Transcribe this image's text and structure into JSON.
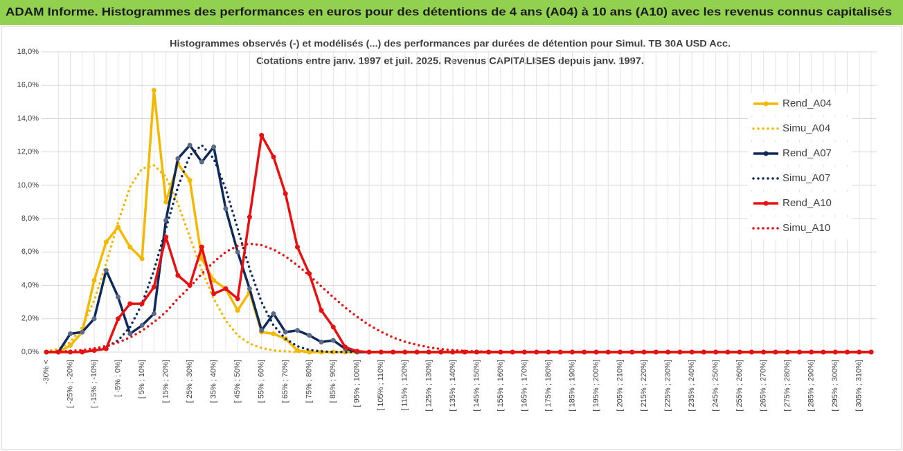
{
  "page_title": "ADAM Informe. Histogrammes des performances en euros pour des détentions de 4 ans (A04) à 10 ans (A10) avec les revenus connus capitalisés",
  "chart_data": {
    "type": "line",
    "title": "Histogrammes observés (-) et modélisés (...) des performances par durées de détention pour Simul. TB 30A USD Acc.",
    "subtitle": "Cotations entre janv. 1997 et juil. 2025. Revenus CAPITALISES depuis janv. 1997.",
    "categories": [
      "-30% <",
      null,
      "[ -25% ; -20%]",
      null,
      "[ -15% ; -10%]",
      null,
      "[ -5% ; 0%]",
      null,
      "[ 5% ; 10%]",
      null,
      "[ 15% ; 20%]",
      null,
      "[ 25% ; 30%]",
      null,
      "[ 35% ; 40%]",
      null,
      "[ 45% ; 50%]",
      null,
      "[ 55% ; 60%]",
      null,
      "[ 65% ; 70%]",
      null,
      "[ 75% ; 80%]",
      null,
      "[ 85% ; 90%]",
      null,
      "[ 95% ; 100%]",
      null,
      "[ 105% ; 110%]",
      null,
      "[ 115% ; 120%]",
      null,
      "[ 125% ; 130%]",
      null,
      "[ 135% ; 140%]",
      null,
      "[ 145% ; 150%]",
      null,
      "[ 155% ; 160%]",
      null,
      "[ 165% ; 170%]",
      null,
      "[ 175% ; 180%]",
      null,
      "[ 185% ; 190%]",
      null,
      "[ 195% ; 200%]",
      null,
      "[ 205% ; 210%]",
      null,
      "[ 215% ; 220%]",
      null,
      "[ 225% ; 230%]",
      null,
      "[ 235% ; 240%]",
      null,
      "[ 245% ; 250%]",
      null,
      "[ 255% ; 260%]",
      null,
      "[ 265% ; 270%]",
      null,
      "[ 275% ; 280%]",
      null,
      "[ 285% ; 290%]",
      null,
      "[ 295% ; 300%]",
      null,
      "[ 305% ; 310%]",
      null
    ],
    "series": [
      {
        "name": "Rend_A04",
        "color": "#f5b800",
        "line_style": "solid",
        "markers": true,
        "values": [
          0,
          0,
          0.4,
          1.2,
          4.3,
          6.6,
          7.5,
          6.3,
          5.6,
          15.7,
          9.0,
          11.3,
          10.3,
          5.6,
          4.3,
          3.8,
          2.5,
          3.6,
          1.2,
          1.1,
          0.8,
          0.1,
          0,
          0,
          0,
          0,
          0,
          0,
          0,
          0,
          0,
          0,
          0,
          0,
          0,
          0,
          0,
          0,
          0,
          0,
          0,
          0,
          0,
          0,
          0,
          0,
          0,
          0,
          0,
          0,
          0,
          0,
          0,
          0,
          0,
          0,
          0,
          0,
          0,
          0,
          0,
          0,
          0,
          0,
          0,
          0,
          0,
          0,
          0,
          0
        ]
      },
      {
        "name": "Simu_A04",
        "color": "#f5b800",
        "line_style": "dotted",
        "markers": false,
        "values": [
          0.05,
          0.2,
          0.6,
          1.5,
          3.1,
          5.3,
          7.8,
          9.9,
          11.0,
          11.2,
          10.5,
          8.9,
          6.9,
          4.9,
          3.2,
          1.9,
          1.0,
          0.5,
          0.25,
          0.1,
          0.04,
          0.01,
          0,
          0,
          0,
          0,
          0,
          0,
          0,
          0,
          0,
          0,
          0,
          0,
          0,
          0,
          0,
          0,
          0,
          0,
          0,
          0,
          0,
          0,
          0,
          0,
          0,
          0,
          0,
          0,
          0,
          0,
          0,
          0,
          0,
          0,
          0,
          0,
          0,
          0,
          0,
          0,
          0,
          0,
          0,
          0,
          0,
          0,
          0,
          0
        ]
      },
      {
        "name": "Rend_A07",
        "color": "#0e2a5a",
        "line_style": "solid",
        "markers": true,
        "values": [
          0,
          0,
          1.1,
          1.2,
          2.0,
          4.9,
          3.3,
          1.1,
          1.6,
          2.3,
          7.9,
          11.6,
          12.4,
          11.4,
          12.3,
          8.6,
          6.0,
          3.8,
          1.3,
          2.3,
          1.2,
          1.3,
          1.0,
          0.6,
          0.7,
          0.2,
          0,
          0,
          0,
          0,
          0,
          0,
          0,
          0,
          0,
          0,
          0,
          0,
          0,
          0,
          0,
          0,
          0,
          0,
          0,
          0,
          0,
          0,
          0,
          0,
          0,
          0,
          0,
          0,
          0,
          0,
          0,
          0,
          0,
          0,
          0,
          0,
          0,
          0,
          0,
          0,
          0,
          0,
          0,
          0
        ]
      },
      {
        "name": "Simu_A07",
        "color": "#0e2a5a",
        "line_style": "dotted",
        "markers": false,
        "values": [
          0,
          0,
          0,
          0.02,
          0.1,
          0.3,
          0.7,
          1.5,
          2.9,
          4.9,
          7.4,
          9.9,
          11.8,
          12.4,
          11.6,
          9.8,
          7.4,
          5.0,
          3.0,
          1.6,
          0.8,
          0.35,
          0.13,
          0.04,
          0.01,
          0,
          0,
          0,
          0,
          0,
          0,
          0,
          0,
          0,
          0,
          0,
          0,
          0,
          0,
          0,
          0,
          0,
          0,
          0,
          0,
          0,
          0,
          0,
          0,
          0,
          0,
          0,
          0,
          0,
          0,
          0,
          0,
          0,
          0,
          0,
          0,
          0,
          0,
          0,
          0,
          0,
          0,
          0,
          0,
          0
        ]
      },
      {
        "name": "Rend_A10",
        "color": "#e81010",
        "line_style": "solid",
        "markers": true,
        "values": [
          0,
          0,
          0,
          0,
          0.1,
          0.2,
          2.0,
          2.9,
          2.9,
          3.9,
          6.9,
          4.6,
          4.0,
          6.3,
          3.5,
          3.8,
          3.2,
          8.1,
          13.0,
          11.7,
          9.5,
          6.3,
          4.7,
          2.5,
          1.5,
          0.3,
          0.05,
          0,
          0,
          0,
          0,
          0,
          0,
          0,
          0,
          0,
          0,
          0,
          0,
          0,
          0,
          0,
          0,
          0,
          0,
          0,
          0,
          0,
          0,
          0,
          0,
          0,
          0,
          0,
          0,
          0,
          0,
          0,
          0,
          0,
          0,
          0,
          0,
          0,
          0,
          0,
          0,
          0,
          0,
          0
        ]
      },
      {
        "name": "Simu_A10",
        "color": "#e81010",
        "line_style": "dotted",
        "markers": false,
        "values": [
          0.02,
          0.04,
          0.07,
          0.13,
          0.22,
          0.37,
          0.58,
          0.88,
          1.28,
          1.8,
          2.4,
          3.2,
          3.9,
          4.7,
          5.4,
          6.0,
          6.37,
          6.5,
          6.41,
          6.15,
          5.74,
          5.2,
          4.6,
          3.94,
          3.29,
          2.67,
          2.11,
          1.62,
          1.21,
          0.88,
          0.62,
          0.43,
          0.29,
          0.18,
          0.12,
          0.07,
          0.04,
          0.025,
          0.015,
          0.01,
          0,
          0,
          0,
          0,
          0,
          0,
          0,
          0,
          0,
          0,
          0,
          0,
          0,
          0,
          0,
          0,
          0,
          0,
          0,
          0,
          0,
          0,
          0,
          0,
          0,
          0,
          0,
          0,
          0,
          0
        ]
      }
    ],
    "ylim": [
      0,
      18
    ],
    "yticks": [
      {
        "value": 0,
        "label": "0,0%"
      },
      {
        "value": 2,
        "label": "2,0%"
      },
      {
        "value": 4,
        "label": "4,0%"
      },
      {
        "value": 6,
        "label": "6,0%"
      },
      {
        "value": 8,
        "label": "8,0%"
      },
      {
        "value": 10,
        "label": "10,0%"
      },
      {
        "value": 12,
        "label": "12,0%"
      },
      {
        "value": 14,
        "label": "14,0%"
      },
      {
        "value": 16,
        "label": "16,0%"
      },
      {
        "value": 18,
        "label": "18,0%"
      }
    ],
    "grid": true,
    "legend": "right"
  }
}
